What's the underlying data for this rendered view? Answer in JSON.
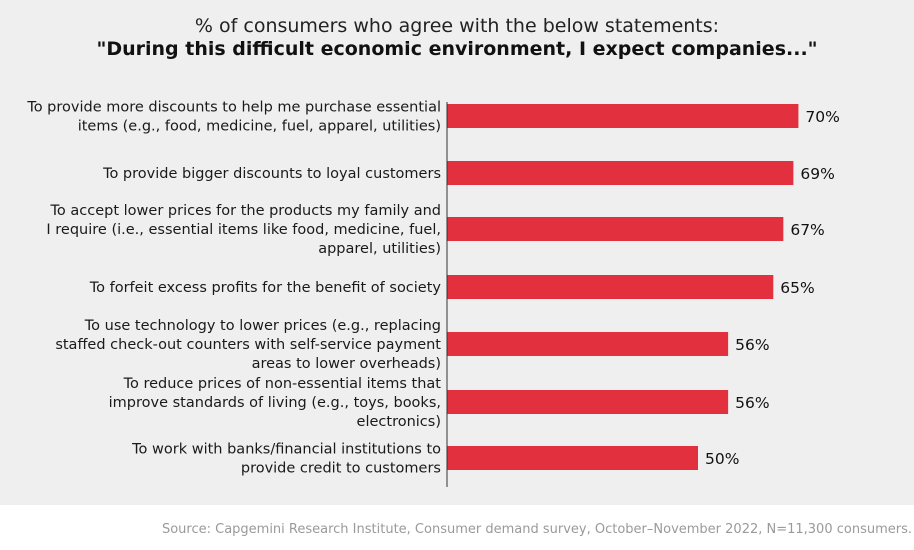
{
  "chart_data": {
    "type": "bar",
    "orientation": "horizontal",
    "title": "% of consumers who agree with the below statements:",
    "subtitle": "\"During this difficult economic environment, I expect companies...\"",
    "categories": [
      [
        "To provide more discounts to help me purchase essential",
        "items (e.g., food, medicine, fuel, apparel, utilities)"
      ],
      [
        "To provide bigger discounts to loyal customers"
      ],
      [
        "To accept lower prices for the products my family and",
        "I require (i.e., essential items like food, medicine, fuel,",
        "apparel, utilities)"
      ],
      [
        "To forfeit excess profits for the benefit of society"
      ],
      [
        "To use technology to lower prices (e.g., replacing",
        "staffed check-out counters with self-service payment",
        "areas to lower overheads)"
      ],
      [
        "To reduce prices of non-essential items that",
        "improve standards of living (e.g., toys, books,",
        "electronics)"
      ],
      [
        "To work with banks/financial institutions to",
        "provide credit to customers"
      ]
    ],
    "values": [
      70,
      69,
      67,
      65,
      56,
      56,
      50
    ],
    "value_labels": [
      "70%",
      "69%",
      "67%",
      "65%",
      "56%",
      "56%",
      "50%"
    ],
    "xlim": [
      0,
      100
    ],
    "bar_color": "#e3303f",
    "grid": false,
    "legend": "none"
  },
  "source": "Source: Capgemini Research Institute, Consumer demand survey, October–November 2022, N=11,300 consumers."
}
